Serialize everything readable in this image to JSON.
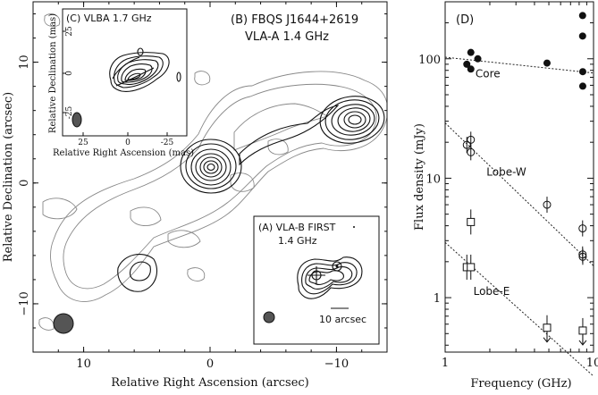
{
  "chart_data": [
    {
      "panel": "contour_map",
      "type": "contour",
      "labels": {
        "panel_b": "(B) FBQS J1644+2619",
        "panel_b_sub": "VLA-A   1.4 GHz",
        "xlabel": "Relative Right Ascension (arcsec)",
        "ylabel": "Relative Declination (arcsec)"
      },
      "xlim": [
        14,
        -14
      ],
      "ylim": [
        -14,
        15
      ],
      "xticks": [
        10,
        0,
        -10
      ],
      "yticks": [
        10,
        0,
        -10
      ],
      "xtick_labels": [
        "10",
        "0",
        "−10"
      ],
      "ytick_labels": [
        "10",
        "0",
        "−10"
      ],
      "components": [
        {
          "name": "core",
          "ra": 0,
          "dec": 0.5
        },
        {
          "name": "lobe-west",
          "ra": -11,
          "dec": 4.3
        },
        {
          "name": "lobe-east",
          "ra": 5.3,
          "dec": -8
        }
      ],
      "inset_c": {
        "label": "(C) VLBA  1.7 GHz",
        "xlabel": "Relative Right Ascension (mas)",
        "ylabel": "Relative Declination (mas)",
        "xticks": [
          25,
          0,
          -25
        ],
        "yticks": [
          25,
          0,
          -25
        ],
        "xtick_labels": [
          "25",
          "0",
          "-25"
        ],
        "ytick_labels": [
          "25",
          "0",
          "-25"
        ]
      },
      "inset_a": {
        "label": "(A) VLA-B  FIRST",
        "label_sub": "1.4 GHz",
        "scalebar": "10 arcsec"
      }
    },
    {
      "panel": "spectrum",
      "type": "scatter",
      "label": "(D)",
      "xlabel": "Frequency (GHz)",
      "ylabel": "Flux density (mJy)",
      "xscale": "log",
      "yscale": "log",
      "xlim": [
        1,
        10
      ],
      "ylim": [
        0.35,
        300
      ],
      "xticks": [
        1,
        10
      ],
      "xtick_labels": [
        "1",
        "10"
      ],
      "yticks": [
        1,
        10,
        100
      ],
      "ytick_labels": [
        "1",
        "10",
        "100"
      ],
      "series": [
        {
          "name": "Core",
          "marker": "filled-circle",
          "points": [
            [
              1.4,
              90
            ],
            [
              1.49,
              82
            ],
            [
              1.49,
              113
            ],
            [
              1.66,
              100
            ],
            [
              4.86,
              92
            ],
            [
              8.44,
              230
            ],
            [
              8.44,
              155
            ],
            [
              8.46,
              78
            ],
            [
              8.46,
              59
            ]
          ],
          "fit": [
            [
              1.0,
              103
            ],
            [
              10.0,
              76
            ]
          ]
        },
        {
          "name": "Lobe-W",
          "marker": "open-circle",
          "points": [
            [
              1.4,
              19
            ],
            [
              1.49,
              21
            ],
            [
              1.49,
              16.5
            ],
            [
              4.86,
              6.0
            ],
            [
              8.44,
              3.8
            ],
            [
              8.44,
              2.3
            ],
            [
              8.46,
              2.2
            ]
          ],
          "fit": [
            [
              1.0,
              29
            ],
            [
              10.0,
              1.85
            ]
          ]
        },
        {
          "name": "Lobe-E",
          "marker": "open-square",
          "points": [
            [
              1.4,
              1.8
            ],
            [
              1.49,
              4.3
            ],
            [
              1.49,
              1.8
            ],
            [
              4.86,
              0.56
            ],
            [
              8.46,
              0.53
            ]
          ],
          "upper_limits": [
            [
              4.86,
              0.56
            ],
            [
              8.46,
              0.53
            ]
          ],
          "fit": [
            [
              1.0,
              2.9
            ],
            [
              10.0,
              0.22
            ]
          ]
        }
      ]
    }
  ]
}
